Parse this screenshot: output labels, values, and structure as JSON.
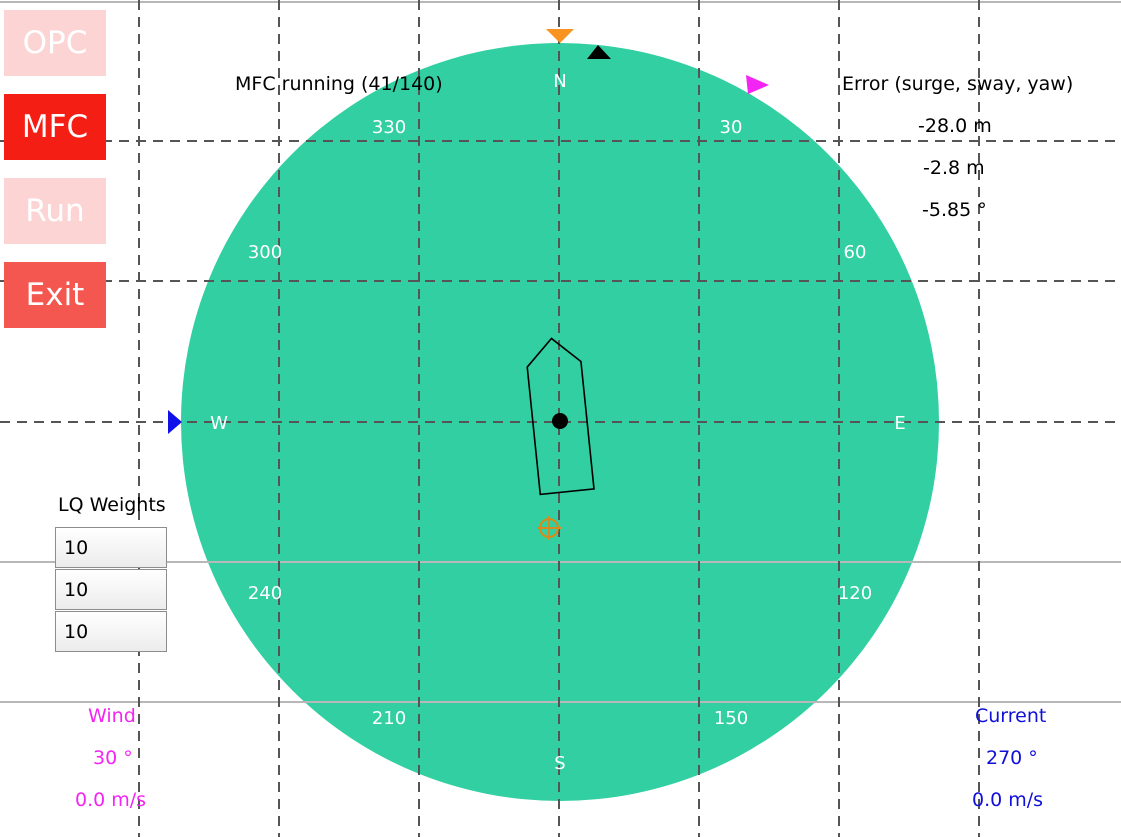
{
  "buttons": {
    "opc": "OPC",
    "mfc": "MFC",
    "run": "Run",
    "exit": "Exit"
  },
  "status_text": "MFC running (41/140)",
  "error_panel": {
    "title": "Error (surge, sway, yaw)",
    "surge": "-28.0 m",
    "sway": "-2.8 m",
    "yaw": "-5.85 °"
  },
  "compass": {
    "cardinals": {
      "north": "N",
      "east": "E",
      "south": "S",
      "west": "W"
    },
    "degree_labels": {
      "d30": "30",
      "d60": "60",
      "d120": "120",
      "d150": "150",
      "d210": "210",
      "d240": "240",
      "d300": "300",
      "d330": "330"
    },
    "dial_color": "#31cfa1",
    "vessel_heading_deg": -5.85,
    "wind_direction_deg": 30,
    "current_direction_deg": 270
  },
  "lq_weights": {
    "title": "LQ Weights",
    "values": [
      "10",
      "10",
      "10"
    ]
  },
  "wind": {
    "label": "Wind",
    "direction": "30 °",
    "speed": "0.0 m/s",
    "color": "#f425f4"
  },
  "current": {
    "label": "Current",
    "direction": "270 °",
    "speed": "0.0 m/s",
    "color": "#1010d8"
  },
  "icons": {
    "heading_marker": "orange-down-triangle-icon",
    "vessel_heading_marker": "black-triangle-icon",
    "wind_marker": "magenta-triangle-icon",
    "current_marker": "blue-triangle-icon",
    "setpoint": "crosshair-target-icon",
    "vessel": "ship-outline-icon"
  }
}
